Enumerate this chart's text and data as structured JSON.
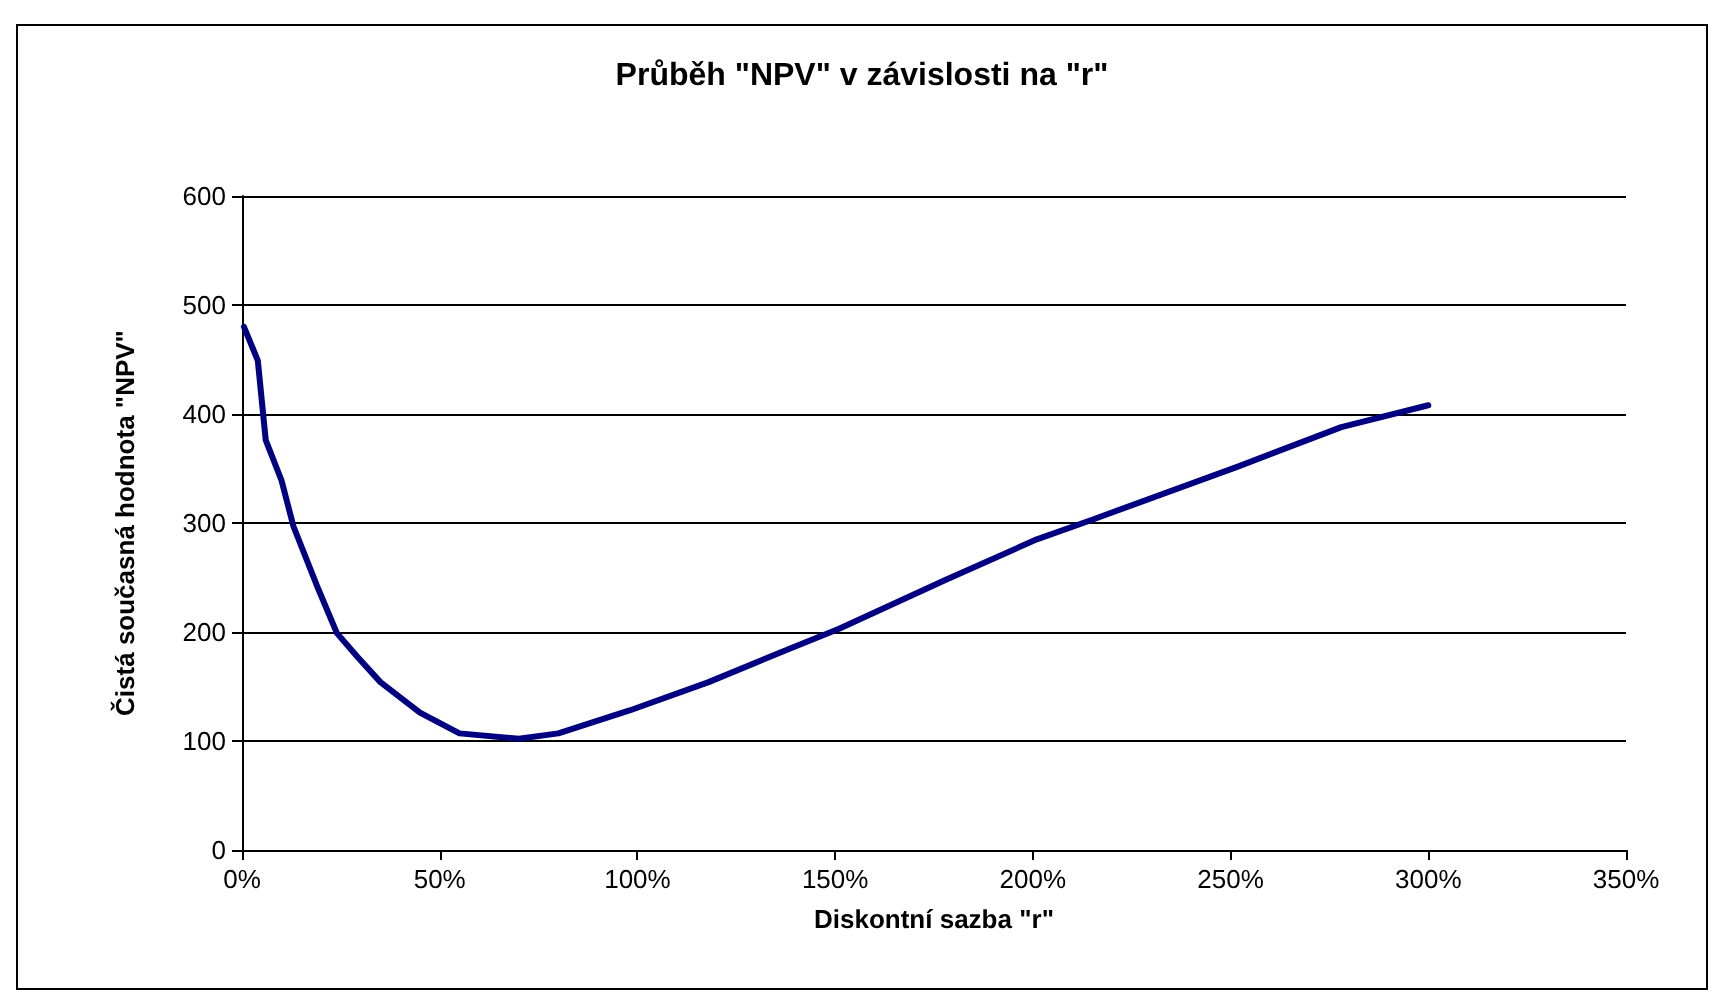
{
  "chart_data": {
    "type": "line",
    "title": "Průběh \"NPV\" v závislosti na \"r\"",
    "xlabel": "Diskontní sazba \"r\"",
    "ylabel": "Čistá současná hodnota \"NPV\"",
    "series": [
      {
        "color": "#000080",
        "x": [
          0.5,
          4,
          6,
          10,
          13,
          19,
          24,
          29,
          35,
          45,
          55,
          70,
          80,
          98,
          118,
          138,
          151,
          178,
          201,
          215,
          252,
          278,
          300
        ],
        "values": [
          480,
          449,
          376,
          339,
          297,
          242,
          199,
          178,
          154,
          126,
          107,
          102,
          107,
          128,
          154,
          184,
          203,
          248,
          285,
          303,
          352,
          388,
          408
        ]
      }
    ],
    "xlim": [
      0,
      350
    ],
    "xticks": [
      {
        "value": 0,
        "label": "0%"
      },
      {
        "value": 50,
        "label": "50%"
      },
      {
        "value": 100,
        "label": "100%"
      },
      {
        "value": 150,
        "label": "150%"
      },
      {
        "value": 200,
        "label": "200%"
      },
      {
        "value": 250,
        "label": "250%"
      },
      {
        "value": 300,
        "label": "300%"
      },
      {
        "value": 350,
        "label": "350%"
      }
    ],
    "ylim": [
      0,
      600
    ],
    "yticks": [
      0,
      100,
      200,
      300,
      400,
      500,
      600
    ],
    "grid": "y",
    "marker": "none",
    "line_style": "solid"
  }
}
